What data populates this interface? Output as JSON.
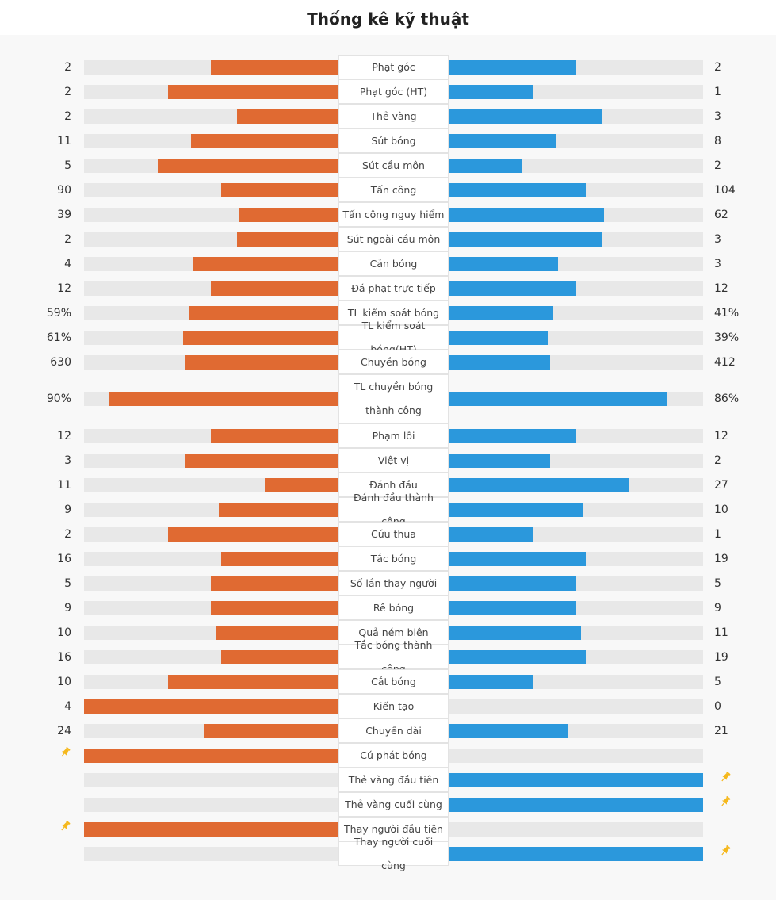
{
  "title": "Thống kê kỹ thuật",
  "colors": {
    "home": "#e06a32",
    "away": "#2b98dc",
    "track": "#e8e8e8",
    "pin": "#f5b81c"
  },
  "stats": [
    {
      "label": "Phạt góc",
      "home": "2",
      "away": "2",
      "home_pct": 50,
      "away_pct": 50
    },
    {
      "label": "Phạt góc (HT)",
      "home": "2",
      "away": "1",
      "home_pct": 67,
      "away_pct": 33
    },
    {
      "label": "Thẻ vàng",
      "home": "2",
      "away": "3",
      "home_pct": 40,
      "away_pct": 60
    },
    {
      "label": "Sút bóng",
      "home": "11",
      "away": "8",
      "home_pct": 58,
      "away_pct": 42
    },
    {
      "label": "Sút cầu môn",
      "home": "5",
      "away": "2",
      "home_pct": 71,
      "away_pct": 29
    },
    {
      "label": "Tấn công",
      "home": "90",
      "away": "104",
      "home_pct": 46,
      "away_pct": 54
    },
    {
      "label": "Tấn công nguy hiểm",
      "home": "39",
      "away": "62",
      "home_pct": 39,
      "away_pct": 61
    },
    {
      "label": "Sút ngoài cầu môn",
      "home": "2",
      "away": "3",
      "home_pct": 40,
      "away_pct": 60
    },
    {
      "label": "Cản bóng",
      "home": "4",
      "away": "3",
      "home_pct": 57,
      "away_pct": 43
    },
    {
      "label": "Đá phạt trực tiếp",
      "home": "12",
      "away": "12",
      "home_pct": 50,
      "away_pct": 50
    },
    {
      "label": "TL kiểm soát bóng",
      "home": "59%",
      "away": "41%",
      "home_pct": 59,
      "away_pct": 41
    },
    {
      "label": "TL kiểm soát bóng(HT)",
      "home": "61%",
      "away": "39%",
      "home_pct": 61,
      "away_pct": 39
    },
    {
      "label": "Chuyền bóng",
      "home": "630",
      "away": "412",
      "home_pct": 60,
      "away_pct": 40
    },
    {
      "label": "TL chuyền bóng thành công",
      "home": "90%",
      "away": "86%",
      "home_pct": 90,
      "away_pct": 86,
      "tall": true
    },
    {
      "label": "Phạm lỗi",
      "home": "12",
      "away": "12",
      "home_pct": 50,
      "away_pct": 50
    },
    {
      "label": "Việt vị",
      "home": "3",
      "away": "2",
      "home_pct": 60,
      "away_pct": 40
    },
    {
      "label": "Đánh đầu",
      "home": "11",
      "away": "27",
      "home_pct": 29,
      "away_pct": 71
    },
    {
      "label": "Đánh đầu thành công",
      "home": "9",
      "away": "10",
      "home_pct": 47,
      "away_pct": 53
    },
    {
      "label": "Cứu thua",
      "home": "2",
      "away": "1",
      "home_pct": 67,
      "away_pct": 33
    },
    {
      "label": "Tắc bóng",
      "home": "16",
      "away": "19",
      "home_pct": 46,
      "away_pct": 54
    },
    {
      "label": "Số lần thay người",
      "home": "5",
      "away": "5",
      "home_pct": 50,
      "away_pct": 50
    },
    {
      "label": "Rê bóng",
      "home": "9",
      "away": "9",
      "home_pct": 50,
      "away_pct": 50
    },
    {
      "label": "Quả ném biên",
      "home": "10",
      "away": "11",
      "home_pct": 48,
      "away_pct": 52
    },
    {
      "label": "Tắc bóng thành công",
      "home": "16",
      "away": "19",
      "home_pct": 46,
      "away_pct": 54
    },
    {
      "label": "Cắt bóng",
      "home": "10",
      "away": "5",
      "home_pct": 67,
      "away_pct": 33
    },
    {
      "label": "Kiến tạo",
      "home": "4",
      "away": "0",
      "home_pct": 100,
      "away_pct": 0
    },
    {
      "label": "Chuyền dài",
      "home": "24",
      "away": "21",
      "home_pct": 53,
      "away_pct": 47
    },
    {
      "label": "Cú phát bóng",
      "home": "",
      "away": "",
      "home_pct": 100,
      "away_pct": 0,
      "home_pin": true
    },
    {
      "label": "Thẻ vàng đầu tiên",
      "home": "",
      "away": "",
      "home_pct": 0,
      "away_pct": 100,
      "away_pin": true
    },
    {
      "label": "Thẻ vàng cuối cùng",
      "home": "",
      "away": "",
      "home_pct": 0,
      "away_pct": 100,
      "away_pin": true
    },
    {
      "label": "Thay người đầu tiên",
      "home": "",
      "away": "",
      "home_pct": 100,
      "away_pct": 0,
      "home_pin": true
    },
    {
      "label": "Thay người cuối cùng",
      "home": "",
      "away": "",
      "home_pct": 0,
      "away_pct": 100,
      "away_pin": true
    }
  ]
}
